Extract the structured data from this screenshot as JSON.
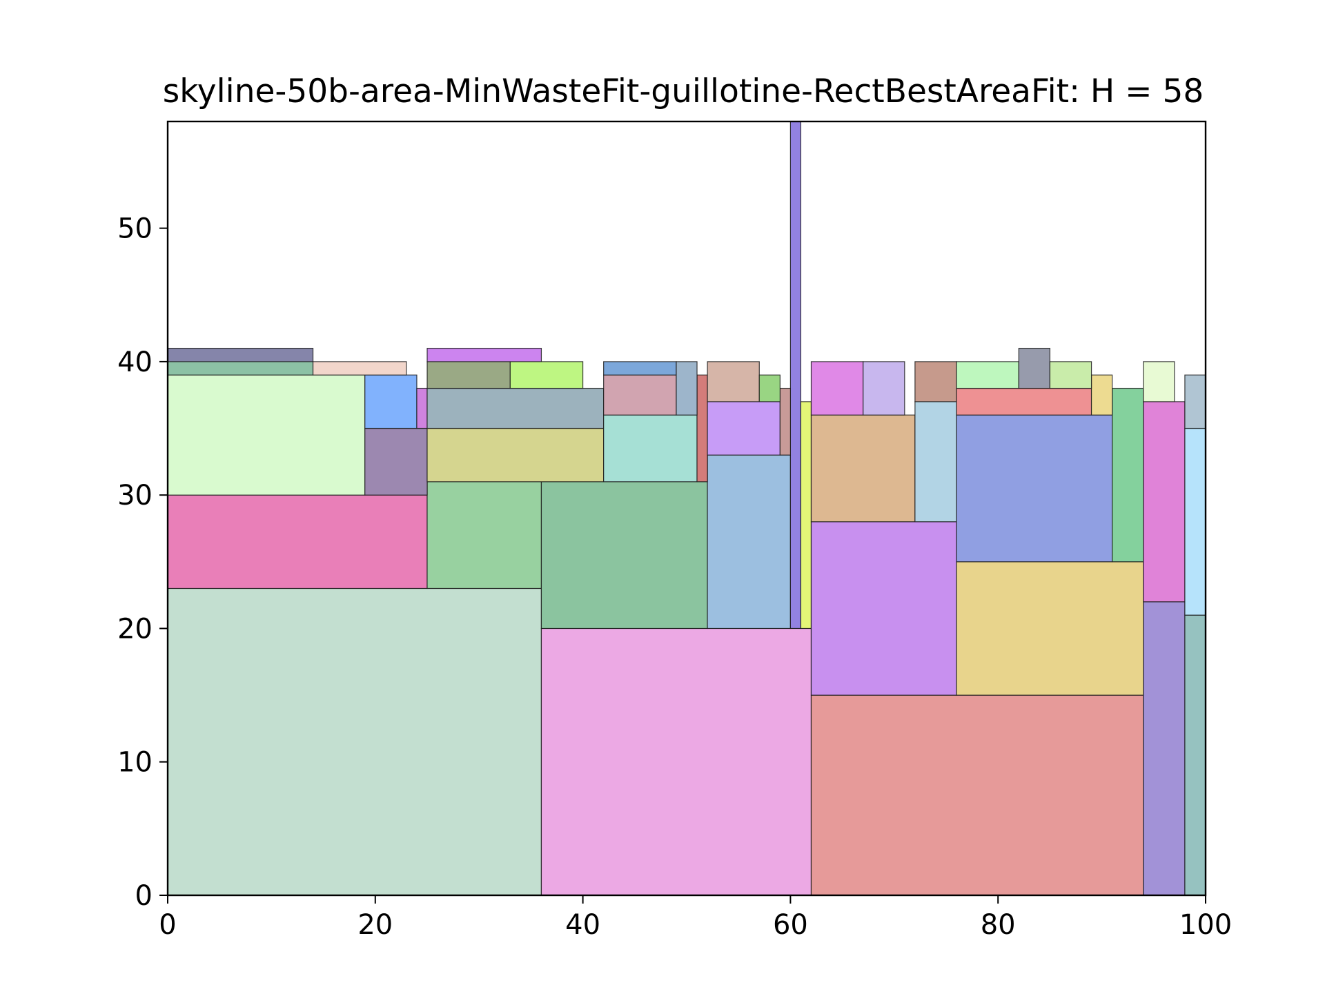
{
  "chart_data": {
    "type": "rectangle-packing",
    "title": "skyline-50b-area-MinWasteFit-guillotine-RectBestAreaFit: H = 58",
    "xlabel": "",
    "ylabel": "",
    "xlim": [
      0,
      100
    ],
    "ylim": [
      0,
      58
    ],
    "xticks": [
      "0",
      "20",
      "40",
      "60",
      "80",
      "100"
    ],
    "yticks": [
      "0",
      "10",
      "20",
      "30",
      "40",
      "50"
    ],
    "grid": false,
    "rects": [
      {
        "x": 0,
        "y": 0,
        "w": 36,
        "h": 23,
        "color": "#c3dfd0"
      },
      {
        "x": 36,
        "y": 0,
        "w": 26,
        "h": 20,
        "color": "#eca9e4"
      },
      {
        "x": 62,
        "y": 0,
        "w": 32,
        "h": 15,
        "color": "#e69a99"
      },
      {
        "x": 94,
        "y": 0,
        "w": 4,
        "h": 22,
        "color": "#a292d7"
      },
      {
        "x": 98,
        "y": 0,
        "w": 2,
        "h": 21,
        "color": "#96c2c0"
      },
      {
        "x": 0,
        "y": 23,
        "w": 25,
        "h": 7,
        "color": "#e97fb8"
      },
      {
        "x": 25,
        "y": 23,
        "w": 11,
        "h": 8,
        "color": "#98d1a0"
      },
      {
        "x": 36,
        "y": 20,
        "w": 16,
        "h": 11,
        "color": "#8bc49f"
      },
      {
        "x": 52,
        "y": 20,
        "w": 8,
        "h": 13,
        "color": "#9cbfe0"
      },
      {
        "x": 60,
        "y": 20,
        "w": 1,
        "h": 38,
        "color": "#9282e1"
      },
      {
        "x": 61,
        "y": 20,
        "w": 1,
        "h": 17,
        "color": "#e4f577"
      },
      {
        "x": 62,
        "y": 15,
        "w": 14,
        "h": 13,
        "color": "#c890ef"
      },
      {
        "x": 76,
        "y": 15,
        "w": 18,
        "h": 10,
        "color": "#e8d48c"
      },
      {
        "x": 94,
        "y": 22,
        "w": 4,
        "h": 15,
        "color": "#e083d8"
      },
      {
        "x": 98,
        "y": 21,
        "w": 2,
        "h": 14,
        "color": "#b6e3fb"
      },
      {
        "x": 98,
        "y": 35,
        "w": 2,
        "h": 4,
        "color": "#b0c5d3"
      },
      {
        "x": 0,
        "y": 30,
        "w": 19,
        "h": 9,
        "color": "#d9facf"
      },
      {
        "x": 19,
        "y": 30,
        "w": 6,
        "h": 5,
        "color": "#9c88b0"
      },
      {
        "x": 19,
        "y": 35,
        "w": 5,
        "h": 4,
        "color": "#81b2fd"
      },
      {
        "x": 24,
        "y": 35,
        "w": 1,
        "h": 3,
        "color": "#cf83df"
      },
      {
        "x": 0,
        "y": 39,
        "w": 14,
        "h": 1,
        "color": "#8cc1a5"
      },
      {
        "x": 0,
        "y": 40,
        "w": 14,
        "h": 1,
        "color": "#8585aa"
      },
      {
        "x": 14,
        "y": 39,
        "w": 9,
        "h": 1,
        "color": "#f2d6cb"
      },
      {
        "x": 25,
        "y": 31,
        "w": 17,
        "h": 4,
        "color": "#d5d58f"
      },
      {
        "x": 25,
        "y": 35,
        "w": 17,
        "h": 3,
        "color": "#9cb2bd"
      },
      {
        "x": 25,
        "y": 38,
        "w": 8,
        "h": 2,
        "color": "#9aa985"
      },
      {
        "x": 33,
        "y": 38,
        "w": 7,
        "h": 2,
        "color": "#bef682"
      },
      {
        "x": 25,
        "y": 40,
        "w": 11,
        "h": 1,
        "color": "#cc84ef"
      },
      {
        "x": 42,
        "y": 31,
        "w": 9,
        "h": 5,
        "color": "#a6e0d5"
      },
      {
        "x": 51,
        "y": 31,
        "w": 1,
        "h": 8,
        "color": "#d47c7a"
      },
      {
        "x": 42,
        "y": 36,
        "w": 7,
        "h": 3,
        "color": "#d1a4b0"
      },
      {
        "x": 42,
        "y": 39,
        "w": 7,
        "h": 1,
        "color": "#7ca7da"
      },
      {
        "x": 49,
        "y": 36,
        "w": 2,
        "h": 4,
        "color": "#9db5cb"
      },
      {
        "x": 52,
        "y": 33,
        "w": 7,
        "h": 4,
        "color": "#c79cf7"
      },
      {
        "x": 59,
        "y": 33,
        "w": 1,
        "h": 5,
        "color": "#c89b98"
      },
      {
        "x": 52,
        "y": 37,
        "w": 5,
        "h": 3,
        "color": "#d6b5a8"
      },
      {
        "x": 57,
        "y": 37,
        "w": 2,
        "h": 2,
        "color": "#99d583"
      },
      {
        "x": 62,
        "y": 28,
        "w": 10,
        "h": 8,
        "color": "#ddb891"
      },
      {
        "x": 72,
        "y": 28,
        "w": 4,
        "h": 9,
        "color": "#b2d4e5"
      },
      {
        "x": 62,
        "y": 36,
        "w": 5,
        "h": 4,
        "color": "#e089e7"
      },
      {
        "x": 67,
        "y": 36,
        "w": 4,
        "h": 4,
        "color": "#c8b7ee"
      },
      {
        "x": 72,
        "y": 37,
        "w": 4,
        "h": 3,
        "color": "#c69a8c"
      },
      {
        "x": 76,
        "y": 25,
        "w": 15,
        "h": 11,
        "color": "#909fe2"
      },
      {
        "x": 91,
        "y": 25,
        "w": 3,
        "h": 13,
        "color": "#84d19d"
      },
      {
        "x": 76,
        "y": 36,
        "w": 13,
        "h": 2,
        "color": "#ee9193"
      },
      {
        "x": 89,
        "y": 36,
        "w": 2,
        "h": 3,
        "color": "#eddb91"
      },
      {
        "x": 76,
        "y": 38,
        "w": 6,
        "h": 2,
        "color": "#bef7be"
      },
      {
        "x": 82,
        "y": 38,
        "w": 3,
        "h": 3,
        "color": "#979bac"
      },
      {
        "x": 85,
        "y": 38,
        "w": 4,
        "h": 2,
        "color": "#c9ecaa"
      },
      {
        "x": 94,
        "y": 37,
        "w": 3,
        "h": 3,
        "color": "#e8fad4"
      }
    ]
  }
}
